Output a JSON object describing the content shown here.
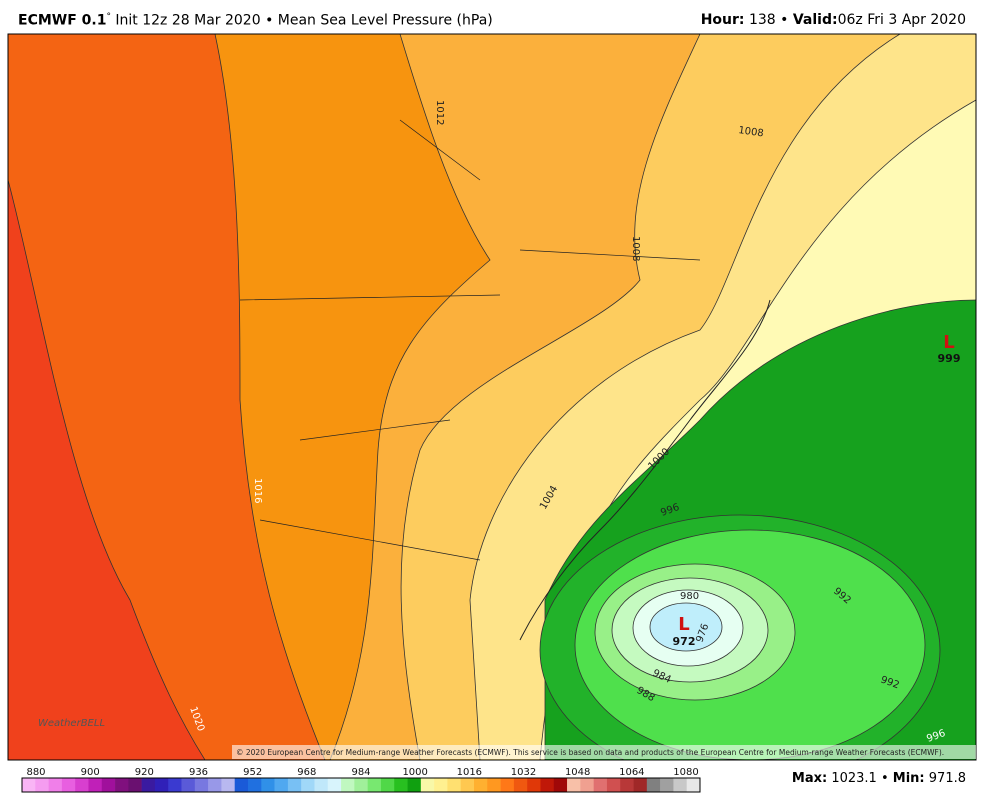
{
  "header": {
    "model": "ECMWF 0.1",
    "degree": "°",
    "init": "Init 12z 28 Mar 2020",
    "separator": "•",
    "product": "Mean Sea Level Pressure (hPa)",
    "hour_label": "Hour:",
    "hour": "138",
    "valid_label": "Valid:",
    "valid": "06z Fri 3 Apr 2020"
  },
  "map": {
    "contour_labels": [
      1012,
      1008,
      1008,
      1016,
      1020,
      1004,
      1000,
      996,
      992,
      992,
      996,
      988,
      984,
      980,
      976
    ],
    "lows": [
      {
        "symbol": "L",
        "value": 972
      },
      {
        "symbol": "L",
        "value": 999
      }
    ],
    "logo": "WeatherBELL",
    "credit": "© 2020 European Centre for Medium-range Weather Forecasts (ECMWF). This service is based on data and products of the European Centre for Medium-range Weather Forecasts (ECMWF)."
  },
  "colorbar": {
    "ticks": [
      880,
      900,
      920,
      936,
      952,
      968,
      984,
      1000,
      1016,
      1032,
      1048,
      1064,
      1080
    ],
    "colors": [
      "#f9b5f5",
      "#f59cf0",
      "#f07fe9",
      "#e85fe0",
      "#d83fcf",
      "#c020b8",
      "#a0109c",
      "#80107e",
      "#6a1070",
      "#3a1aa0",
      "#3020b8",
      "#3a3ad0",
      "#5a5ad8",
      "#7878e0",
      "#9898e8",
      "#b8b8f0",
      "#1a5ad8",
      "#2070e0",
      "#3090e8",
      "#50a8f0",
      "#78c0f4",
      "#a0d8f8",
      "#c0e8fa",
      "#d8f4fc",
      "#c0f8c0",
      "#a0f09a",
      "#78e870",
      "#50d848",
      "#28c020",
      "#10a010",
      "#f8f8a8",
      "#fff090",
      "#ffe070",
      "#ffc850",
      "#ffb030",
      "#ff9820",
      "#ff7818",
      "#f05810",
      "#e03808",
      "#c01808",
      "#a00808",
      "#f8c0a8",
      "#f0a090",
      "#e07070",
      "#d05050",
      "#b83838",
      "#a02828",
      "#808080",
      "#a0a0a0",
      "#c8c8c8",
      "#e8e8e8"
    ]
  },
  "footer": {
    "max_label": "Max:",
    "max": "1023.1",
    "separator": "•",
    "min_label": "Min:",
    "min": "971.8"
  }
}
